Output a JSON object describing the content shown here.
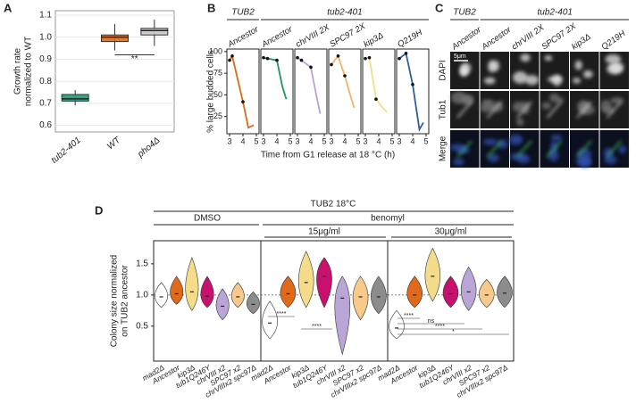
{
  "chart_data": [
    {
      "type": "box",
      "panel": "A",
      "ylabel": [
        "Growth rate",
        "normalized to WT"
      ],
      "categories": [
        "tub2-401",
        "WT",
        "pho4Δ"
      ],
      "colors": [
        "#1b9e77",
        "#e0691a",
        "#c8c8c8"
      ],
      "medians": [
        0.72,
        1.0,
        1.03
      ],
      "q1": [
        0.71,
        0.98,
        1.01
      ],
      "q3": [
        0.74,
        1.01,
        1.04
      ],
      "mins": [
        0.69,
        0.94,
        0.96
      ],
      "maxs": [
        0.76,
        1.06,
        1.08
      ],
      "ylim": [
        0.57,
        1.12
      ],
      "yticks": [
        0.6,
        0.7,
        0.8,
        0.9,
        {
          "value": 1,
          "label": "1.0"
        },
        1.1
      ],
      "grid": true,
      "annotations": [
        "**"
      ]
    },
    {
      "type": "line",
      "panel": "B",
      "headers": [
        "TUB2",
        "tub2-401"
      ],
      "ylabel": "% large budded cells",
      "xlabel": "Time from G1 release at 18 °C (h)",
      "ylim": [
        5,
        103
      ],
      "yticks": [
        25,
        50,
        75,
        100
      ],
      "xlim": [
        2.8,
        5.2
      ],
      "xticks": [
        3,
        4,
        5
      ],
      "series": [
        {
          "name": "Ancestor",
          "color": "#e0691a",
          "x": [
            3,
            3.2,
            4,
            4.4,
            4.8
          ],
          "values": [
            90,
            95,
            42,
            12,
            15
          ]
        },
        {
          "name": "Ancestor",
          "color": "#1a9a5a",
          "x": [
            3,
            3.3,
            4,
            4.4,
            4.7
          ],
          "values": [
            93,
            92,
            90,
            60,
            45
          ]
        },
        {
          "name": "chrVIII 2X",
          "color": "#b7a2d8",
          "x": [
            3,
            3.3,
            4,
            4.4,
            4.7
          ],
          "values": [
            93,
            90,
            82,
            50,
            28
          ]
        },
        {
          "name": "SPC97 2X",
          "color": "#f6b26b",
          "x": [
            3,
            3.5,
            4,
            4.4,
            4.7
          ],
          "values": [
            85,
            95,
            72,
            50,
            35
          ]
        },
        {
          "name": "kip3Δ",
          "color": "#f2e08a",
          "x": [
            3,
            3.3,
            3.8,
            4.3,
            4.6
          ],
          "values": [
            92,
            93,
            45,
            35,
            30
          ]
        },
        {
          "name": "Q219H",
          "color": "#2d5d9f",
          "x": [
            3,
            3.5,
            4,
            4.5,
            4.8
          ],
          "values": [
            92,
            98,
            62,
            10,
            18
          ]
        }
      ]
    },
    {
      "type": "image_grid",
      "panel": "C",
      "headers": [
        "TUB2",
        "tub2-401"
      ],
      "columns": [
        "Ancestor",
        "Ancestor",
        "chrVIII 2X",
        "SPC97 2X",
        "kip3Δ",
        "Q219H"
      ],
      "rows": [
        "DAPI",
        "Tub1",
        "Merge"
      ],
      "scale_bar": "5μm"
    },
    {
      "type": "violin",
      "panel": "D",
      "header": "TUB2 18°C",
      "treatments": [
        "DMSO",
        "benomyl"
      ],
      "doses": [
        "15μg/ml",
        "30μg/ml"
      ],
      "ylabel": [
        "Colony size normalized",
        "on TUB2 ancestor"
      ],
      "categories": [
        "mad2Δ",
        "Ancestor",
        "kip3Δ",
        "tub1Q246Y",
        "chrVIII x2",
        "SPC97 x2",
        "chrVIIIx2 spc97Δ"
      ],
      "colors": [
        "#ffffff",
        "#e0691a",
        "#f5dc8a",
        "#c8106e",
        "#b9a6d6",
        "#f7c98a",
        "#8c8c8c"
      ],
      "groups": [
        {
          "medians": [
            0.97,
            1.02,
            1.05,
            0.98,
            0.82,
            0.97,
            0.85
          ],
          "mins": [
            0.8,
            0.85,
            0.75,
            0.8,
            0.6,
            0.8,
            0.7
          ],
          "maxs": [
            1.2,
            1.3,
            1.6,
            1.3,
            1.1,
            1.2,
            1.05
          ]
        },
        {
          "medians": [
            0.55,
            1.02,
            1.2,
            1.3,
            0.95,
            0.97,
            0.97
          ],
          "mins": [
            0.3,
            0.8,
            0.8,
            0.8,
            0.05,
            0.6,
            0.7
          ],
          "maxs": [
            0.9,
            1.3,
            1.7,
            1.6,
            1.3,
            1.3,
            1.3
          ]
        },
        {
          "medians": [
            0.47,
            1.0,
            1.3,
            1.02,
            1.05,
            1.0,
            1.03
          ],
          "mins": [
            0.3,
            0.8,
            0.9,
            0.8,
            0.75,
            0.8,
            0.8
          ],
          "maxs": [
            0.75,
            1.3,
            1.75,
            1.3,
            1.45,
            1.25,
            1.3
          ]
        }
      ],
      "ylim": [
        -0.06,
        1.87
      ],
      "yticks": [
        0.5,
        {
          "value": 1,
          "label": "1.0"
        },
        1.5
      ],
      "reference_line": 1,
      "annotations": [
        "****",
        "****",
        "****",
        "ns",
        "****",
        "*"
      ]
    }
  ]
}
